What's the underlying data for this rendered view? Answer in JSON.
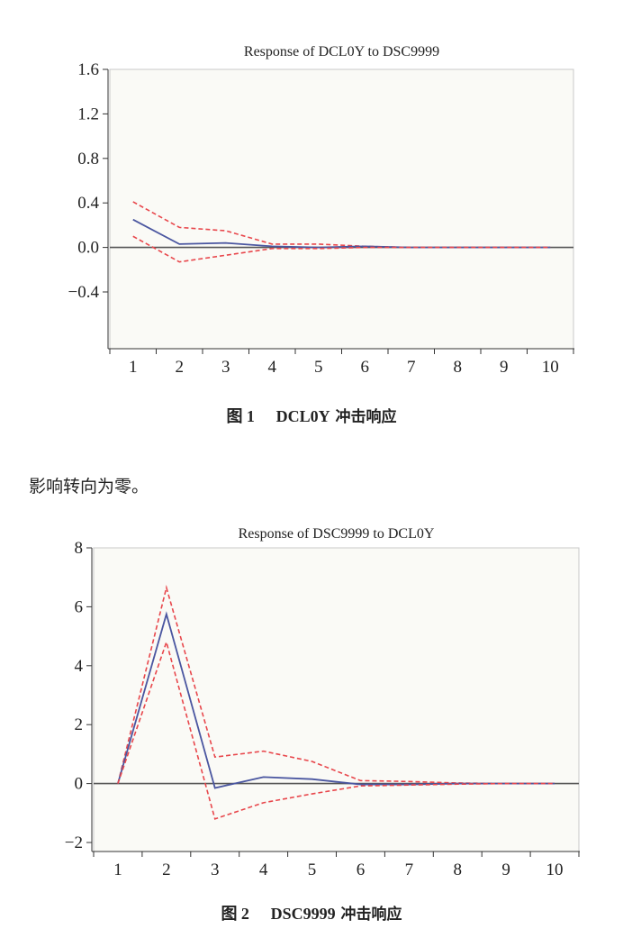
{
  "chart_data": [
    {
      "type": "line",
      "title": "Response of DCL0Y to DSC9999",
      "x": [
        1,
        2,
        3,
        4,
        5,
        6,
        7,
        8,
        9,
        10
      ],
      "ylim": [
        -0.4,
        1.6
      ],
      "yticks": [
        "1.6",
        "1.2",
        "0.8",
        "0.4",
        "0.0",
        "-0.4"
      ],
      "xticks": [
        "1",
        "2",
        "3",
        "4",
        "5",
        "6",
        "7",
        "8",
        "9",
        "10"
      ],
      "grid": false,
      "series": [
        {
          "role": "upper",
          "color": "#e8474c",
          "dash": true,
          "values": [
            0.41,
            0.18,
            0.15,
            0.03,
            0.03,
            0.01,
            0.0,
            0.0,
            0.0,
            0.0
          ]
        },
        {
          "role": "response",
          "color": "#4a56a0",
          "dash": false,
          "values": [
            0.25,
            0.03,
            0.04,
            0.01,
            0.0,
            0.01,
            0.0,
            0.0,
            0.0,
            0.0
          ]
        },
        {
          "role": "lower",
          "color": "#e8474c",
          "dash": true,
          "values": [
            0.1,
            -0.13,
            -0.07,
            -0.01,
            -0.01,
            0.0,
            0.0,
            0.0,
            0.0,
            0.0
          ]
        }
      ]
    },
    {
      "type": "line",
      "title": "Response of DSC9999 to DCL0Y",
      "x": [
        1,
        2,
        3,
        4,
        5,
        6,
        7,
        8,
        9,
        10
      ],
      "ylim": [
        -2,
        8
      ],
      "yticks": [
        "8",
        "6",
        "4",
        "2",
        "0",
        "-2"
      ],
      "xticks": [
        "1",
        "2",
        "3",
        "4",
        "5",
        "6",
        "7",
        "8",
        "9",
        "10"
      ],
      "grid": false,
      "series": [
        {
          "role": "upper",
          "color": "#e8474c",
          "dash": true,
          "values": [
            0.0,
            6.65,
            0.9,
            1.1,
            0.75,
            0.1,
            0.07,
            0.02,
            0.0,
            0.0
          ]
        },
        {
          "role": "response",
          "color": "#4a56a0",
          "dash": false,
          "values": [
            0.0,
            5.75,
            -0.15,
            0.22,
            0.15,
            -0.03,
            -0.03,
            0.0,
            0.0,
            0.0
          ]
        },
        {
          "role": "lower",
          "color": "#e8474c",
          "dash": true,
          "values": [
            0.0,
            4.8,
            -1.2,
            -0.65,
            -0.35,
            -0.08,
            -0.05,
            -0.02,
            0.0,
            0.0
          ]
        }
      ]
    }
  ],
  "captions": [
    {
      "num": "图 1",
      "var": "DCL0Y",
      "text": " 冲击响应"
    },
    {
      "num": "图 2",
      "var": "DSC9999",
      "text": " 冲击响应"
    }
  ],
  "body_text": "影响转向为零。"
}
